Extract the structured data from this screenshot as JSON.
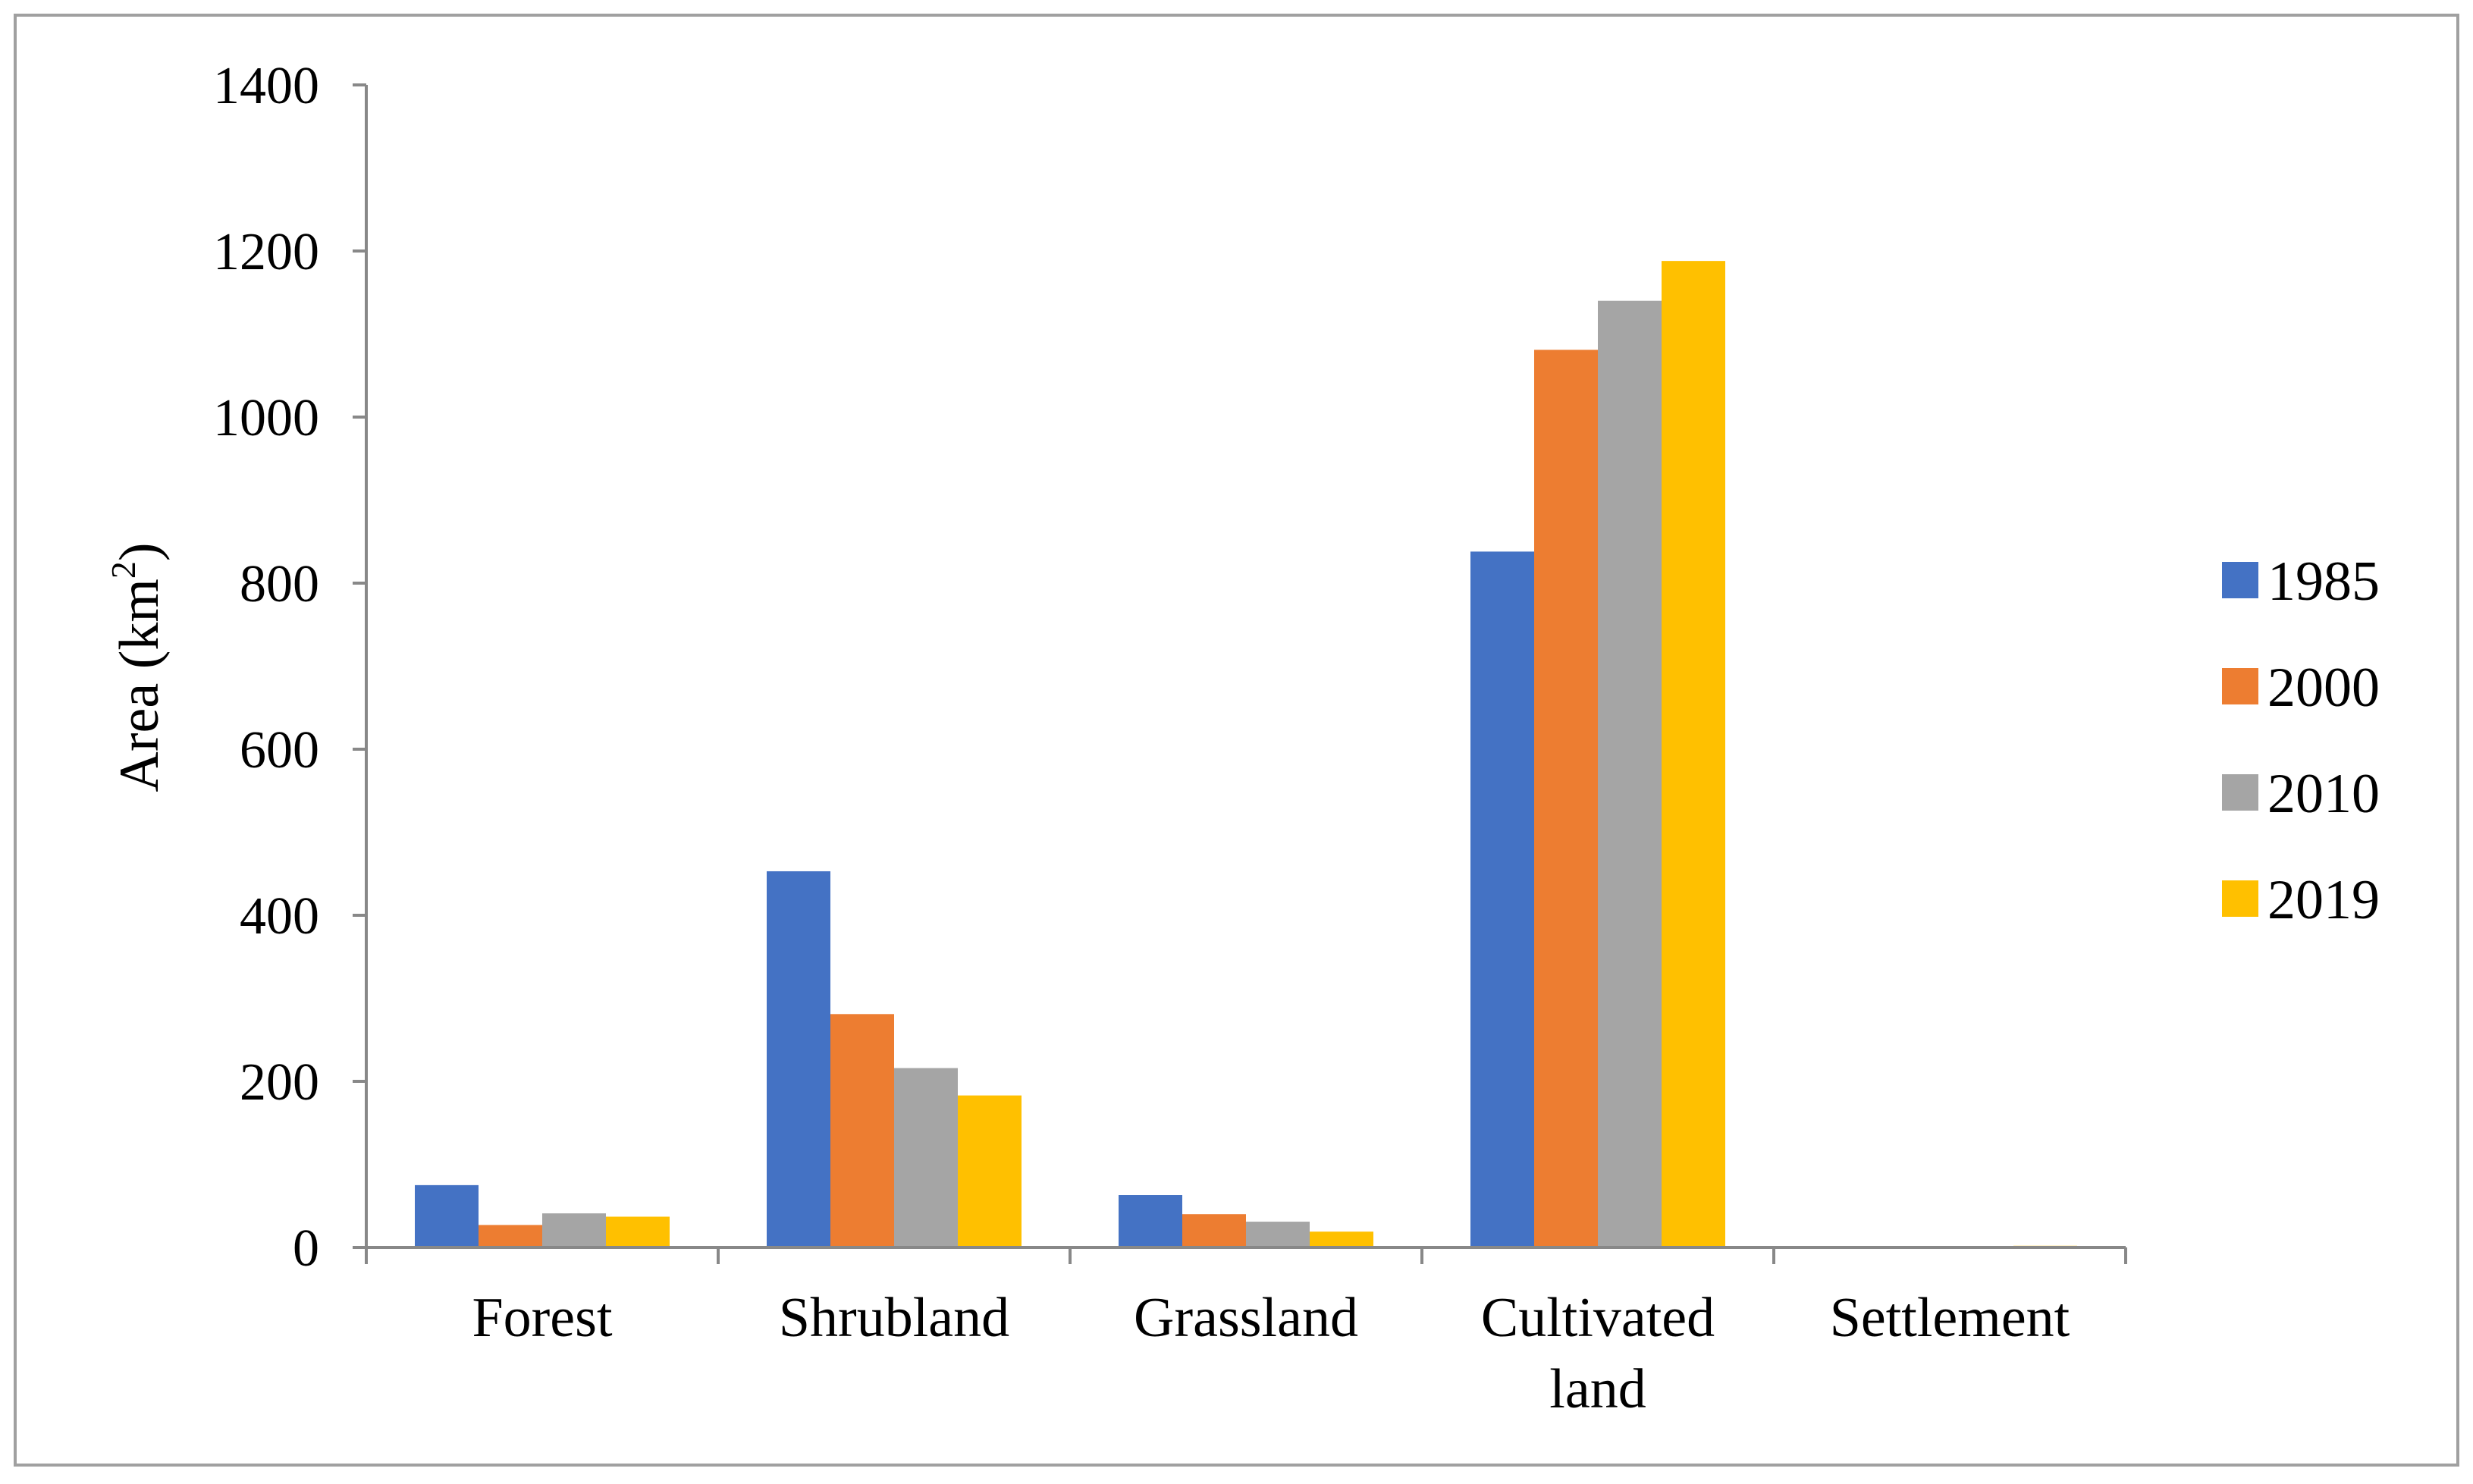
{
  "chart_data": {
    "type": "bar",
    "title": "",
    "xlabel": "",
    "ylabel": {
      "prefix": "Area (km",
      "superscript": "2",
      "suffix": ")"
    },
    "ylim": [
      0,
      1400
    ],
    "yticks": [
      0,
      200,
      400,
      600,
      800,
      1000,
      1200,
      1400
    ],
    "grid": false,
    "legend_position": "right",
    "categories": [
      [
        "Forest"
      ],
      [
        "Shrubland"
      ],
      [
        "Grassland"
      ],
      [
        "Cultivated",
        "land"
      ],
      [
        "Settlement"
      ]
    ],
    "series": [
      {
        "name": "1985",
        "color": "#4472C4",
        "values": [
          75,
          453,
          63,
          838,
          1
        ]
      },
      {
        "name": "2000",
        "color": "#ED7D31",
        "values": [
          27,
          281,
          40,
          1081,
          1
        ]
      },
      {
        "name": "2010",
        "color": "#A5A5A5",
        "values": [
          41,
          216,
          31,
          1140,
          1
        ]
      },
      {
        "name": "2019",
        "color": "#FFC000",
        "values": [
          37,
          183,
          19,
          1188,
          2
        ]
      }
    ]
  }
}
